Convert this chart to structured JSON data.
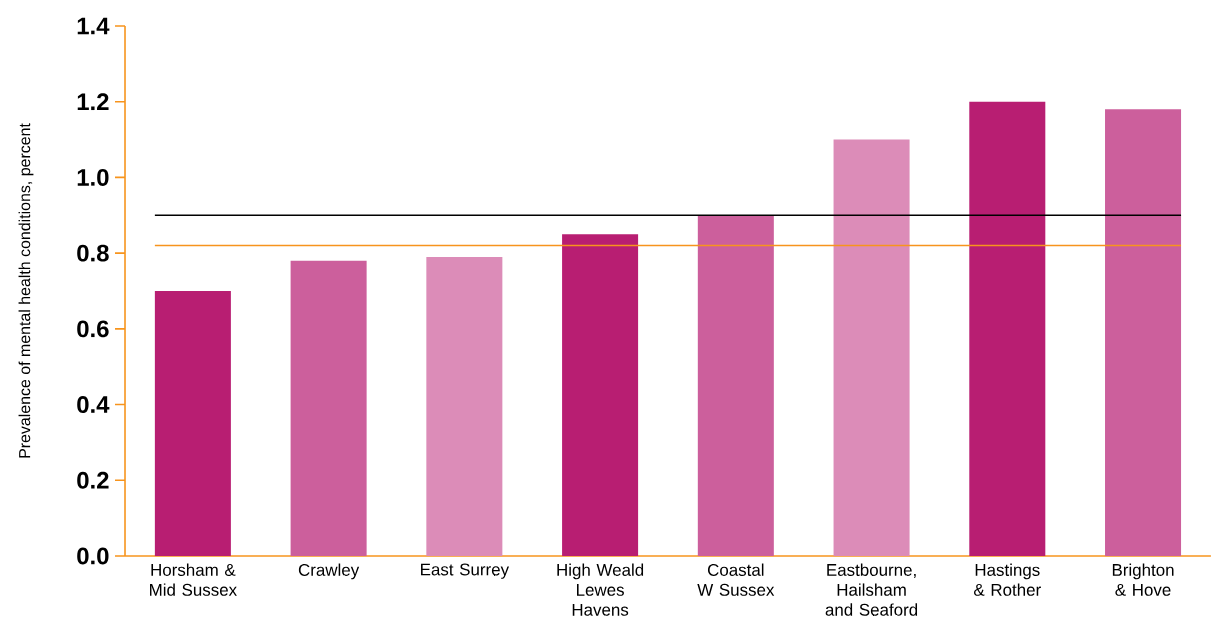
{
  "chart_data": {
    "type": "bar",
    "ylabel": "Prevalence of mental health conditions, percent",
    "categories": [
      "Horsham & Mid Sussex",
      "Crawley",
      "East Surrey",
      "High Weald Lewes Havens",
      "Coastal W Sussex",
      "Eastbourne, Hailsham and Seaford",
      "Hastings & Rother",
      "Brighton & Hove"
    ],
    "values": [
      0.7,
      0.78,
      0.79,
      0.85,
      0.9,
      1.1,
      1.2,
      1.18
    ],
    "colors": [
      "#b81e72",
      "#cc5f9c",
      "#dc8cb8",
      "#b81e72",
      "#cc5f9c",
      "#dc8cb8",
      "#b81e72",
      "#cc5f9c"
    ],
    "ylim": [
      0,
      1.4
    ],
    "yticks": [
      {
        "value": 0,
        "label": "0.0"
      },
      {
        "value": 0.2,
        "label": "0.2"
      },
      {
        "value": 0.4,
        "label": "0.4"
      },
      {
        "value": 0.6,
        "label": "0.6"
      },
      {
        "value": 0.8,
        "label": "0.8"
      },
      {
        "value": 1.0,
        "label": "1.0"
      },
      {
        "value": 1.2,
        "label": "1.2"
      },
      {
        "value": 1.4,
        "label": "1.4"
      }
    ],
    "ref_lines": [
      {
        "axis": "y",
        "value": 0.9,
        "color": "#000000"
      },
      {
        "axis": "y",
        "value": 0.82,
        "color": "#f7941d"
      }
    ],
    "grid": false
  }
}
